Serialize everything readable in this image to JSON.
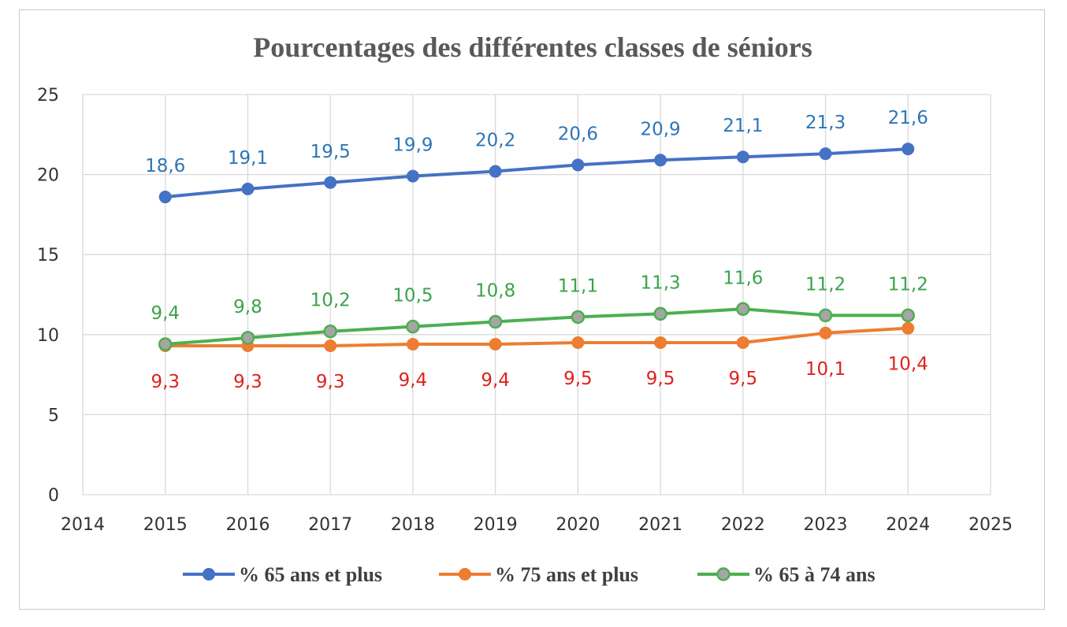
{
  "chart_data": {
    "type": "line",
    "title": "Pourcentages des différentes classes de séniors",
    "xlabel": "",
    "ylabel": "",
    "xlim": [
      2014,
      2025
    ],
    "ylim": [
      0,
      25
    ],
    "x_ticks": [
      "2014",
      "2015",
      "2016",
      "2017",
      "2018",
      "2019",
      "2020",
      "2021",
      "2022",
      "2023",
      "2024",
      "2025"
    ],
    "y_ticks": [
      "0",
      "5",
      "10",
      "15",
      "20",
      "25"
    ],
    "grid": true,
    "legend_position": "bottom",
    "x": [
      2015,
      2016,
      2017,
      2018,
      2019,
      2020,
      2021,
      2022,
      2023,
      2024
    ],
    "series": [
      {
        "name": "% 65 ans et plus",
        "color": "#4472C4",
        "label_color": "#2E75B6",
        "label_position": "above",
        "values": [
          18.6,
          19.1,
          19.5,
          19.9,
          20.2,
          20.6,
          20.9,
          21.1,
          21.3,
          21.6
        ],
        "labels": [
          "18,6",
          "19,1",
          "19,5",
          "19,9",
          "20,2",
          "20,6",
          "20,9",
          "21,1",
          "21,3",
          "21,6"
        ]
      },
      {
        "name": "% 75 ans et plus",
        "color": "#ED7D31",
        "label_color": "#E0211C",
        "label_position": "below",
        "values": [
          9.3,
          9.3,
          9.3,
          9.4,
          9.4,
          9.5,
          9.5,
          9.5,
          10.1,
          10.4
        ],
        "labels": [
          "9,3",
          "9,3",
          "9,3",
          "9,4",
          "9,4",
          "9,5",
          "9,5",
          "9,5",
          "10,1",
          "10,4"
        ]
      },
      {
        "name": "% 65 à 74 ans",
        "color": "#4CAF50",
        "marker_fill": "#A5A5A5",
        "label_color": "#3BA34A",
        "label_position": "above",
        "values": [
          9.4,
          9.8,
          10.2,
          10.5,
          10.8,
          11.1,
          11.3,
          11.6,
          11.2,
          11.2
        ],
        "labels": [
          "9,4",
          "9,8",
          "10,2",
          "10,5",
          "10,8",
          "11,1",
          "11,3",
          "11,6",
          "11,2",
          "11,2"
        ]
      }
    ]
  }
}
